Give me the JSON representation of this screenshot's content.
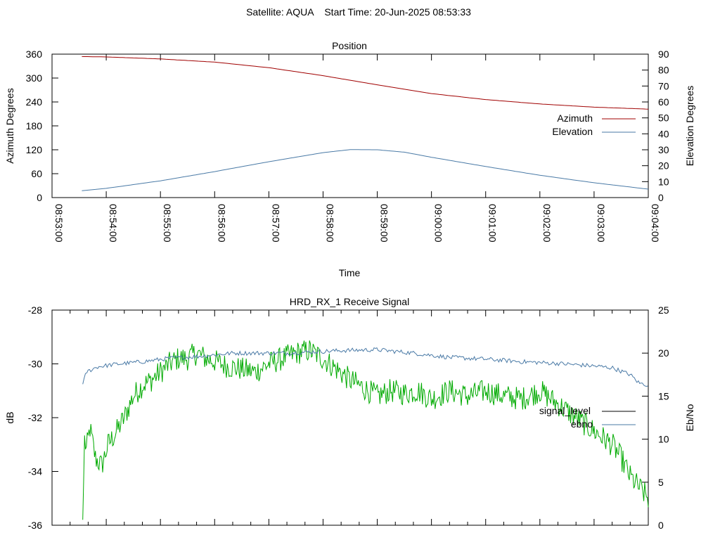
{
  "page": {
    "header": "Satellite: AQUA    Start Time: 20-Jun-2025 08:53:33"
  },
  "chart_data": [
    {
      "type": "line",
      "title": "Position",
      "xlabel": "Time",
      "ylabel": "Azimuth Degrees",
      "y2label": "Elevation Degrees",
      "xlim_seconds": [
        0,
        660
      ],
      "x_ticks": [
        "08:53:00",
        "08:54:00",
        "08:55:00",
        "08:56:00",
        "08:57:00",
        "08:58:00",
        "08:59:00",
        "09:00:00",
        "09:01:00",
        "09:02:00",
        "09:03:00",
        "09:04:00"
      ],
      "ylim": [
        0,
        360
      ],
      "y_ticks": [
        "0",
        "60",
        "120",
        "180",
        "240",
        "300",
        "360"
      ],
      "y2lim": [
        0,
        90
      ],
      "y2_ticks": [
        "0",
        "10",
        "20",
        "30",
        "40",
        "50",
        "60",
        "70",
        "80",
        "90"
      ],
      "legend_position": "right",
      "series": [
        {
          "name": "Azimuth",
          "axis": "left",
          "color": "#a00000",
          "x_seconds": [
            33,
            60,
            120,
            180,
            240,
            300,
            360,
            390,
            420,
            480,
            540,
            600,
            660
          ],
          "values": [
            354,
            353,
            348,
            340,
            326,
            306,
            283,
            272,
            261,
            246,
            235,
            227,
            222
          ]
        },
        {
          "name": "Elevation",
          "axis": "right",
          "color": "#4a7aa6",
          "x_seconds": [
            33,
            60,
            120,
            180,
            240,
            300,
            330,
            360,
            390,
            420,
            480,
            540,
            600,
            660
          ],
          "values": [
            4.3,
            5.8,
            10.5,
            16.3,
            22.5,
            28.2,
            30.1,
            30.0,
            28.5,
            25.3,
            19.5,
            14.0,
            9.3,
            5.3
          ]
        }
      ]
    },
    {
      "type": "line",
      "title": "HRD_RX_1 Receive Signal",
      "ylabel": "dB",
      "y2label": "Eb/No",
      "xlim_seconds": [
        0,
        660
      ],
      "ylim": [
        -36,
        -28
      ],
      "y_ticks": [
        "-28",
        "-30",
        "-32",
        "-34",
        "-36"
      ],
      "y2lim": [
        0,
        25
      ],
      "y2_ticks": [
        "0",
        "5",
        "10",
        "15",
        "20",
        "25"
      ],
      "legend_position": "right",
      "series": [
        {
          "name": "signal_level",
          "axis": "left",
          "legend_color": "#000000",
          "color": "#00aa00",
          "x_seconds": [
            34,
            36,
            38,
            42,
            48,
            55,
            62,
            70,
            80,
            90,
            100,
            110,
            120,
            130,
            140,
            150,
            160,
            170,
            180,
            195,
            210,
            225,
            240,
            255,
            270,
            285,
            300,
            315,
            330,
            345,
            360,
            375,
            390,
            405,
            420,
            440,
            460,
            480,
            500,
            520,
            540,
            560,
            580,
            600,
            620,
            630,
            640,
            650,
            660
          ],
          "values": [
            -35.8,
            -32.8,
            -33.2,
            -32.4,
            -33.5,
            -33.8,
            -33.0,
            -32.6,
            -32.0,
            -31.2,
            -30.8,
            -30.6,
            -30.3,
            -30.0,
            -29.8,
            -29.8,
            -29.6,
            -29.8,
            -29.9,
            -30.1,
            -30.2,
            -30.3,
            -30.0,
            -29.8,
            -29.6,
            -29.5,
            -29.8,
            -30.2,
            -30.6,
            -30.9,
            -31.2,
            -31.0,
            -31.1,
            -31.0,
            -31.3,
            -31.0,
            -31.2,
            -31.0,
            -31.2,
            -31.3,
            -31.0,
            -31.5,
            -32.0,
            -32.5,
            -33.0,
            -33.5,
            -34.2,
            -34.6,
            -35.0
          ],
          "noise_db": 0.45
        },
        {
          "name": "ebno",
          "axis": "right",
          "color": "#4a7aa6",
          "x_seconds": [
            34,
            38,
            50,
            70,
            100,
            130,
            160,
            200,
            260,
            320,
            360,
            400,
            440,
            480,
            520,
            560,
            600,
            620,
            640,
            650,
            660
          ],
          "values": [
            16.3,
            17.8,
            18.4,
            18.7,
            19.0,
            19.4,
            19.6,
            20.0,
            20.0,
            20.3,
            20.4,
            20.0,
            19.5,
            19.3,
            19.0,
            18.8,
            18.5,
            18.3,
            17.5,
            16.5,
            16.3
          ],
          "noise_ebno": 0.25
        }
      ]
    }
  ]
}
